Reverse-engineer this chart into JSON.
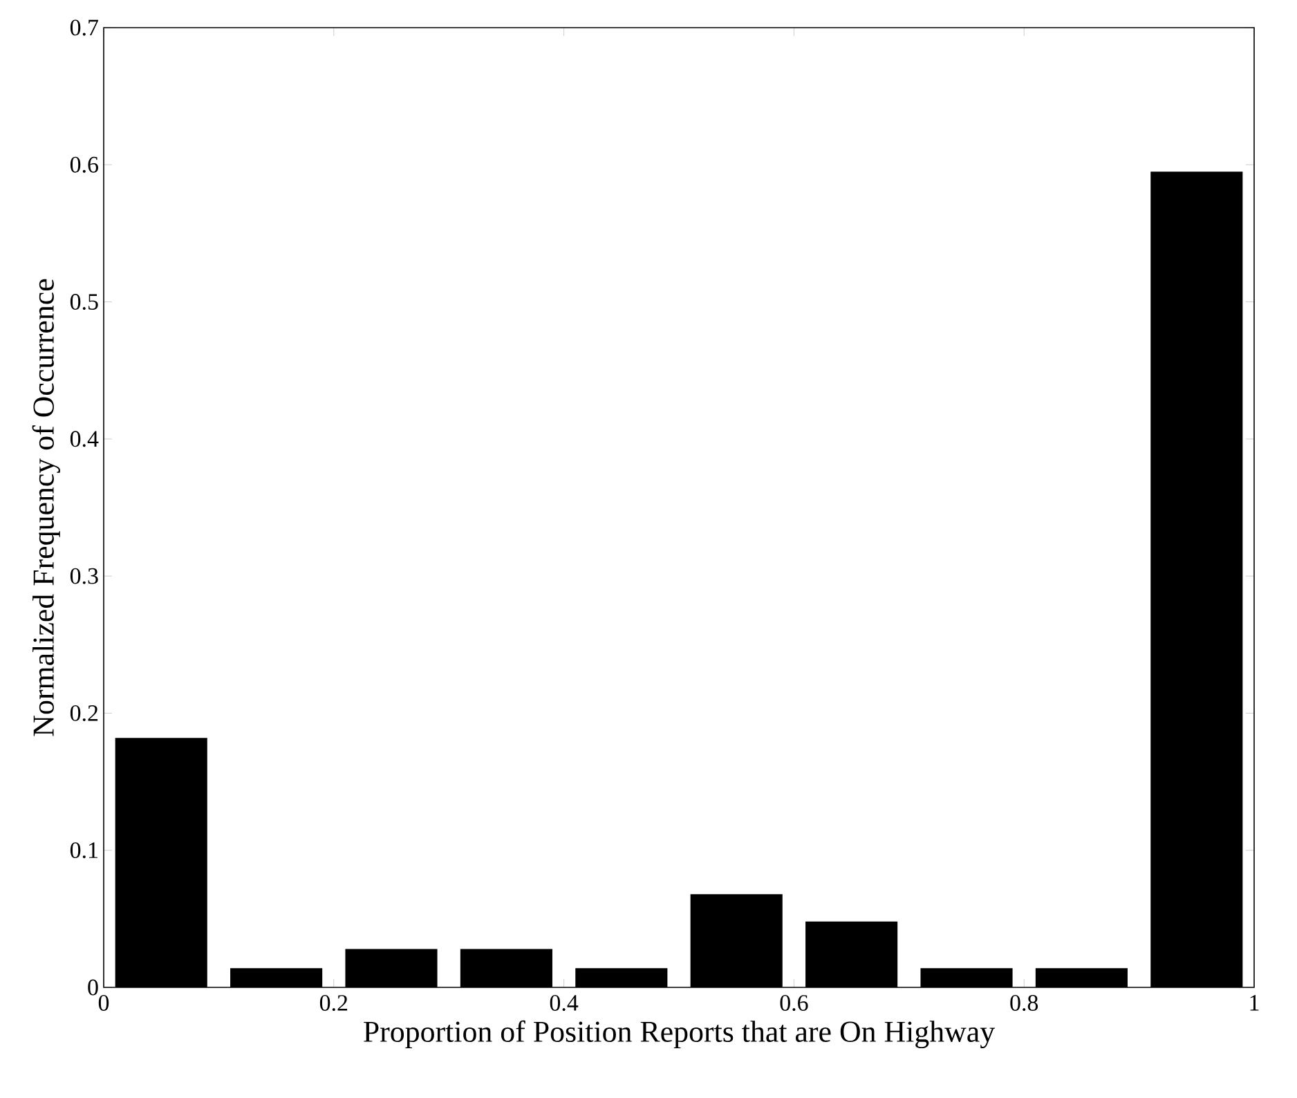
{
  "chart_data": {
    "type": "bar",
    "xlabel": "Proportion of Position Reports that are On Highway",
    "ylabel": "Normalized Frequency of Occurrence",
    "x": [
      0.05,
      0.15,
      0.25,
      0.35,
      0.45,
      0.55,
      0.65,
      0.75,
      0.85,
      0.95
    ],
    "values": [
      0.182,
      0.014,
      0.028,
      0.028,
      0.014,
      0.068,
      0.048,
      0.014,
      0.014,
      0.595
    ],
    "color": "#000000",
    "xlim": [
      0,
      1
    ],
    "ylim": [
      0,
      0.7
    ],
    "xticks": [
      0,
      0.2,
      0.4,
      0.6,
      0.8,
      1
    ],
    "yticks": [
      0,
      0.1,
      0.2,
      0.3,
      0.4,
      0.5,
      0.6,
      0.7
    ]
  }
}
